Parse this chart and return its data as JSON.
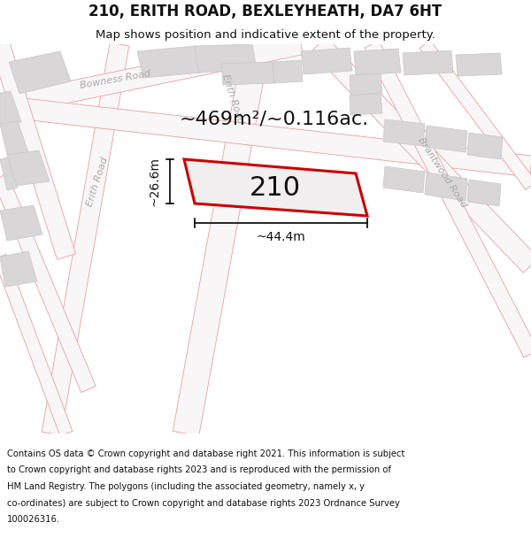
{
  "title": "210, ERITH ROAD, BEXLEYHEATH, DA7 6HT",
  "subtitle": "Map shows position and indicative extent of the property.",
  "footer_line1": "Contains OS data © Crown copyright and database right 2021. This information is subject",
  "footer_line2": "to Crown copyright and database rights 2023 and is reproduced with the permission of",
  "footer_line3": "HM Land Registry. The polygons (including the associated geometry, namely x, y",
  "footer_line4": "co-ordinates) are subject to Crown copyright and database rights 2023 Ordnance Survey",
  "footer_line5": "100026316.",
  "area_label": "~469m²/~0.116ac.",
  "house_number": "210",
  "width_label": "~44.4m",
  "height_label": "~26.6m",
  "bg_color": "#eeecec",
  "road_fill": "#f8f6f6",
  "road_edge": "#e8a0a0",
  "bld_fill": "#d8d6d6",
  "bld_edge": "#c8c6c6",
  "plot_edge": "#cc0000",
  "plot_fill": "#f0eeee",
  "road_label_color": "#aaaaaa",
  "text_color": "#111111",
  "title_fontsize": 12,
  "subtitle_fontsize": 9.5,
  "footer_fontsize": 7.2,
  "area_fontsize": 16,
  "number_fontsize": 22,
  "label_fontsize": 10,
  "road_fontsize": 8
}
